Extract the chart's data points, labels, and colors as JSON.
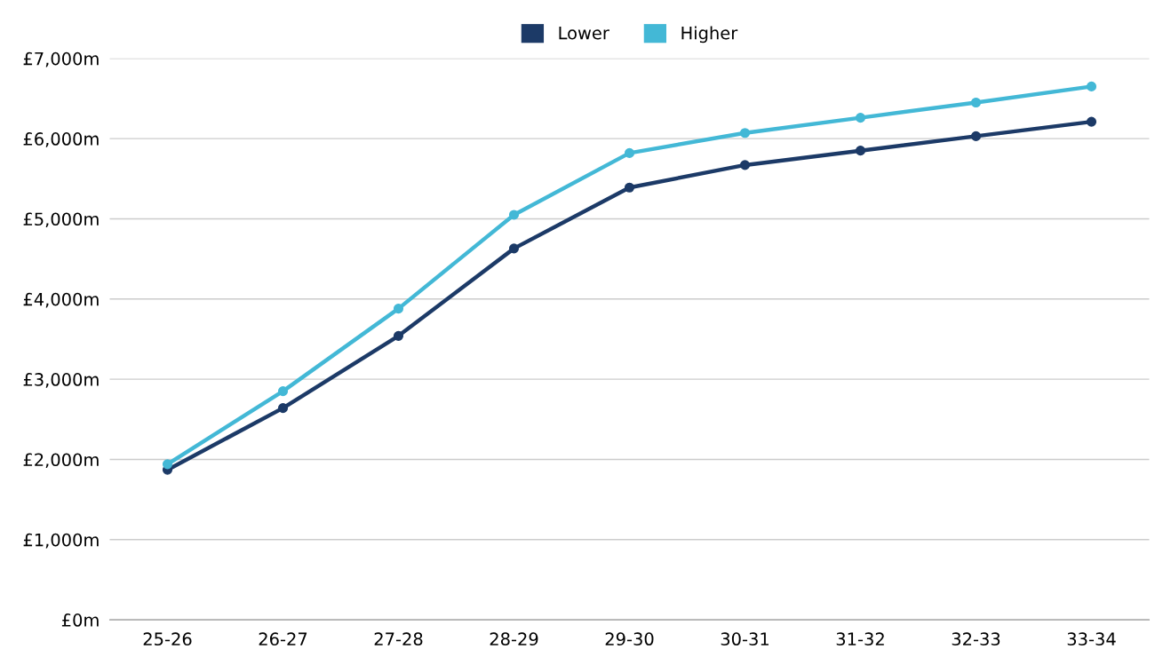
{
  "chart_data": {
    "type": "line",
    "categories": [
      "25-26",
      "26-27",
      "27-28",
      "28-29",
      "29-30",
      "30-31",
      "31-32",
      "32-33",
      "33-34"
    ],
    "series": [
      {
        "name": "Lower",
        "color": "#1c3a67",
        "values": [
          1870,
          2640,
          3540,
          4630,
          5390,
          5670,
          5850,
          6030,
          6210
        ]
      },
      {
        "name": "Higher",
        "color": "#43b8d6",
        "values": [
          1940,
          2850,
          3880,
          5050,
          5820,
          6070,
          6260,
          6450,
          6650
        ]
      }
    ],
    "ylim": [
      0,
      7000
    ],
    "yticks": [
      {
        "value": 0,
        "label": "£0m"
      },
      {
        "value": 1000,
        "label": "£1,000m"
      },
      {
        "value": 2000,
        "label": "£2,000m"
      },
      {
        "value": 3000,
        "label": "£3,000m"
      },
      {
        "value": 4000,
        "label": "£4,000m"
      },
      {
        "value": 5000,
        "label": "£5,000m"
      },
      {
        "value": 6000,
        "label": "£6,000m"
      },
      {
        "value": 7000,
        "label": "£7,000m"
      }
    ],
    "grid": "y",
    "legend": "top",
    "marker": "circle",
    "line_style": "solid"
  }
}
